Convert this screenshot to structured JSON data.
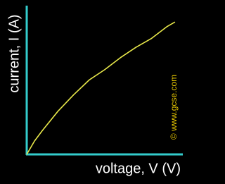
{
  "chart_data": {
    "type": "line",
    "xlabel": "voltage, V (V)",
    "ylabel": "current, I (A)",
    "annotation": "© www.gcse.com",
    "x": [
      0,
      0.5,
      1,
      2,
      3,
      4,
      5,
      6,
      7,
      8,
      9,
      9.5
    ],
    "values": [
      0,
      0.9,
      1.6,
      2.9,
      4.0,
      5.0,
      5.7,
      6.5,
      7.2,
      7.8,
      8.6,
      8.9
    ],
    "xlim": [
      0,
      10
    ],
    "ylim": [
      0,
      10
    ],
    "color": "#e8e84a",
    "axis_color": "#33cccc",
    "annotation_color": "#e8c800",
    "background": "#000000"
  }
}
